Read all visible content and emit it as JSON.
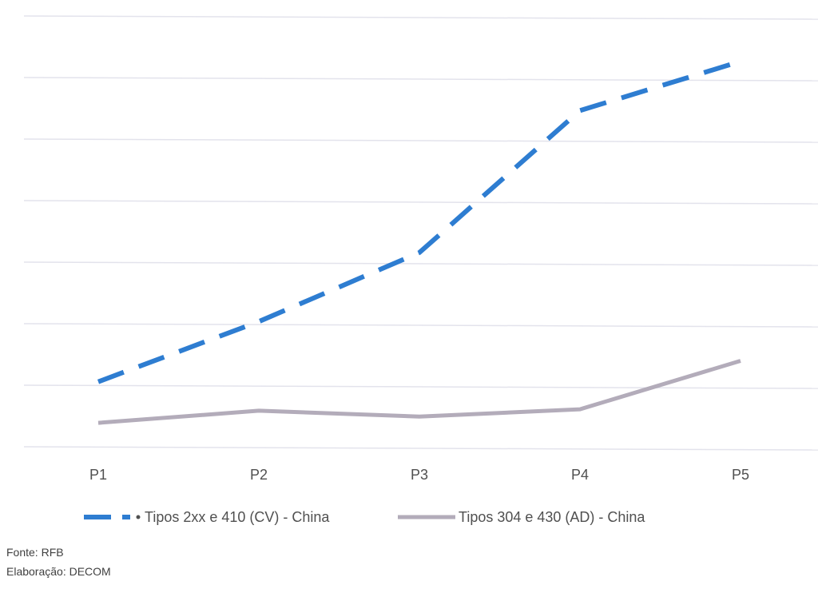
{
  "chart_data": {
    "type": "line",
    "categories": [
      "P1",
      "P2",
      "P3",
      "P4",
      "P5"
    ],
    "series": [
      {
        "name": "Tipos 2xx e 410 (CV) - China",
        "values": [
          12.5,
          28.9,
          47.7,
          86.4,
          99.8
        ],
        "color": "#2e7dd1",
        "style": "dashed"
      },
      {
        "name": "Tipos 304 e 430 (AD) - China",
        "values": [
          1.3,
          4.6,
          3.0,
          5.0,
          18.2
        ],
        "color": "#b3acba",
        "style": "solid"
      }
    ],
    "ylim": [
      -5,
      110
    ],
    "grid": true,
    "y_tick_labels_shown": false,
    "legend_position": "bottom"
  },
  "footer": {
    "source": "Fonte: RFB",
    "elaboration": "Elaboração: DECOM"
  }
}
